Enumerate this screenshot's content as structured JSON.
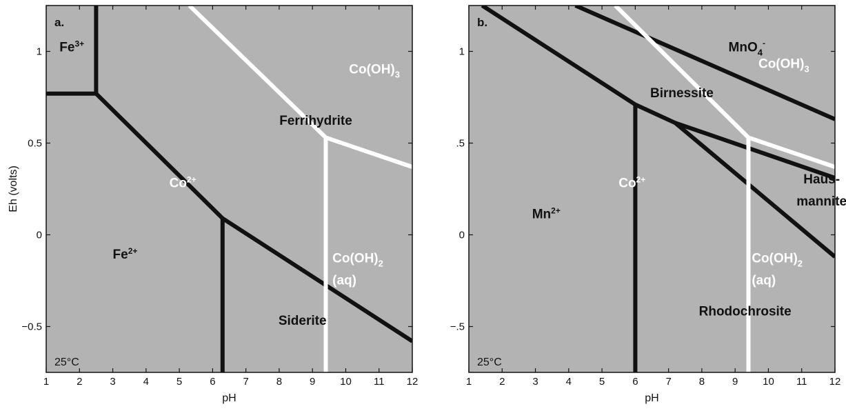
{
  "chart_data": [
    {
      "type": "line",
      "panel_label": "a.",
      "temperature": "25°C",
      "xlabel": "pH",
      "ylabel": "Eh (volts)",
      "xlim": [
        1,
        12
      ],
      "ylim": [
        -0.75,
        1.25
      ],
      "xticks": [
        1,
        2,
        3,
        4,
        5,
        6,
        7,
        8,
        9,
        10,
        11,
        12
      ],
      "xtick_labels": [
        "1",
        "2",
        "3",
        "4",
        "5",
        "6",
        "7",
        "8",
        "9",
        "10",
        "11",
        "12"
      ],
      "yticks": [
        -0.5,
        0,
        0.5,
        1
      ],
      "ytick_labels": [
        "−0.5",
        "0",
        "0.5",
        "1"
      ],
      "background": "#b3b3b3",
      "series": [
        {
          "color": "#111111",
          "points": [
            [
              1,
              0.77
            ],
            [
              2.5,
              0.77
            ],
            [
              2.5,
              1.25
            ]
          ]
        },
        {
          "color": "#111111",
          "points": [
            [
              2.5,
              0.77
            ],
            [
              6.3,
              0.09
            ],
            [
              12,
              -0.58
            ]
          ]
        },
        {
          "color": "#111111",
          "points": [
            [
              6.3,
              0.09
            ],
            [
              6.3,
              -0.75
            ]
          ]
        },
        {
          "color": "#ffffff",
          "points": [
            [
              5.3,
              1.25
            ],
            [
              9.4,
              0.53
            ],
            [
              12,
              0.37
            ]
          ]
        },
        {
          "color": "#ffffff",
          "points": [
            [
              9.4,
              0.53
            ],
            [
              9.4,
              -0.75
            ]
          ]
        }
      ],
      "labels": [
        {
          "x": 1.4,
          "y": 1.0,
          "text": "Fe",
          "sup": "3+",
          "color": "dark"
        },
        {
          "x": 9.1,
          "y": 0.6,
          "text": "Ferrihydrite",
          "color": "dark",
          "anchor": "middle"
        },
        {
          "x": 10.1,
          "y": 0.88,
          "text": "Co(OH)",
          "sub": "3",
          "color": "light"
        },
        {
          "x": 4.7,
          "y": 0.26,
          "text": "Co",
          "sup": "2+",
          "color": "light"
        },
        {
          "x": 3.0,
          "y": -0.13,
          "text": "Fe",
          "sup": "2+",
          "color": "dark"
        },
        {
          "x": 9.6,
          "y": -0.15,
          "text": "Co(OH)",
          "sub": "2",
          "color": "light"
        },
        {
          "x": 9.6,
          "y": -0.27,
          "text": "(aq)",
          "color": "light"
        },
        {
          "x": 8.7,
          "y": -0.49,
          "text": "Siderite",
          "color": "dark",
          "anchor": "middle"
        }
      ]
    },
    {
      "type": "line",
      "panel_label": "b.",
      "temperature": "25°C",
      "xlabel": "pH",
      "ylabel": "",
      "xlim": [
        1,
        12
      ],
      "ylim": [
        -0.75,
        1.25
      ],
      "xticks": [
        1,
        2,
        3,
        4,
        5,
        6,
        7,
        8,
        9,
        10,
        11,
        12
      ],
      "xtick_labels": [
        "1",
        "2",
        "3",
        "4",
        "5",
        "6",
        "7",
        "8",
        "9",
        "10",
        "11",
        "12"
      ],
      "yticks": [
        -0.5,
        0,
        0.5,
        1
      ],
      "ytick_labels": [
        "−.5",
        "0",
        ".5",
        "1"
      ],
      "background": "#b3b3b3",
      "series": [
        {
          "color": "#111111",
          "points": [
            [
              1.4,
              1.25
            ],
            [
              6.0,
              0.71
            ],
            [
              7.2,
              0.61
            ],
            [
              12,
              0.31
            ]
          ]
        },
        {
          "color": "#111111",
          "points": [
            [
              4.2,
              1.25
            ],
            [
              12,
              0.63
            ]
          ]
        },
        {
          "color": "#111111",
          "points": [
            [
              7.2,
              0.61
            ],
            [
              12,
              -0.12
            ]
          ]
        },
        {
          "color": "#111111",
          "points": [
            [
              6.0,
              0.71
            ],
            [
              6.0,
              -0.75
            ]
          ]
        },
        {
          "color": "#ffffff",
          "points": [
            [
              5.4,
              1.25
            ],
            [
              9.4,
              0.53
            ],
            [
              12,
              0.37
            ]
          ]
        },
        {
          "color": "#ffffff",
          "points": [
            [
              9.4,
              0.53
            ],
            [
              9.4,
              -0.75
            ]
          ]
        }
      ],
      "labels": [
        {
          "x": 8.8,
          "y": 1.0,
          "text": "MnO",
          "sub": "4",
          "sup": "-",
          "color": "dark"
        },
        {
          "x": 9.7,
          "y": 0.91,
          "text": "Co(OH)",
          "sub": "3",
          "color": "light"
        },
        {
          "x": 7.4,
          "y": 0.75,
          "text": "Birnessite",
          "color": "dark",
          "anchor": "middle"
        },
        {
          "x": 11.6,
          "y": 0.28,
          "text": "Haus-",
          "color": "dark",
          "anchor": "middle"
        },
        {
          "x": 11.6,
          "y": 0.16,
          "text": "mannite",
          "color": "dark",
          "anchor": "middle"
        },
        {
          "x": 5.5,
          "y": 0.26,
          "text": "Co",
          "sup": "2+",
          "color": "light"
        },
        {
          "x": 2.9,
          "y": 0.09,
          "text": "Mn",
          "sup": "2+",
          "color": "dark"
        },
        {
          "x": 9.5,
          "y": -0.15,
          "text": "Co(OH)",
          "sub": "2",
          "color": "light"
        },
        {
          "x": 9.5,
          "y": -0.27,
          "text": "(aq)",
          "color": "light"
        },
        {
          "x": 9.3,
          "y": -0.44,
          "text": "Rhodochrosite",
          "color": "dark",
          "anchor": "middle"
        }
      ]
    }
  ]
}
